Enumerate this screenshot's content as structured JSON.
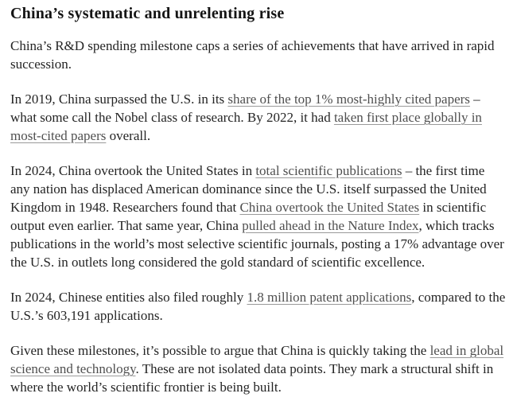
{
  "page": {
    "heading": "China’s systematic and unrelenting rise",
    "colors": {
      "background": "#ffffff",
      "heading_text": "#141414",
      "body_text": "#242424",
      "link_text": "#4f4f4f",
      "link_underline": "#9a9a9a"
    },
    "paragraphs": [
      {
        "segments": [
          {
            "type": "text",
            "text": "China’s R&D spending milestone caps a series of achievements that have arrived in rapid succession."
          }
        ]
      },
      {
        "segments": [
          {
            "type": "text",
            "text": "In 2019, China surpassed the U.S. in its "
          },
          {
            "type": "link",
            "text": "share of the top 1% most-highly cited papers"
          },
          {
            "type": "text",
            "text": " – what some call the Nobel class of research. By 2022, it had "
          },
          {
            "type": "link",
            "text": "taken first place globally in most-cited papers"
          },
          {
            "type": "text",
            "text": " overall."
          }
        ]
      },
      {
        "segments": [
          {
            "type": "text",
            "text": "In 2024, China overtook the United States in "
          },
          {
            "type": "link",
            "text": "total scientific publications"
          },
          {
            "type": "text",
            "text": " – the first time any nation has displaced American dominance since the U.S. itself surpassed the United Kingdom in 1948. Researchers found that "
          },
          {
            "type": "link",
            "text": "China overtook the United States"
          },
          {
            "type": "text",
            "text": " in scientific output even earlier. That same year, China "
          },
          {
            "type": "link",
            "text": "pulled ahead in the Nature Index"
          },
          {
            "type": "text",
            "text": ", which tracks publications in the world’s most selective scientific journals, posting a 17% advantage over the U.S. in outlets long considered the gold standard of scientific excellence."
          }
        ]
      },
      {
        "segments": [
          {
            "type": "text",
            "text": "In 2024, Chinese entities also filed roughly "
          },
          {
            "type": "link",
            "text": "1.8 million patent applications"
          },
          {
            "type": "text",
            "text": ", compared to the U.S.’s 603,191 applications."
          }
        ]
      },
      {
        "segments": [
          {
            "type": "text",
            "text": "Given these milestones, it’s possible to argue that China is quickly taking the "
          },
          {
            "type": "link",
            "text": "lead in global science and technology"
          },
          {
            "type": "text",
            "text": ". These are not isolated data points. They mark a structural shift in where the world’s scientific frontier is being built."
          }
        ]
      }
    ]
  }
}
